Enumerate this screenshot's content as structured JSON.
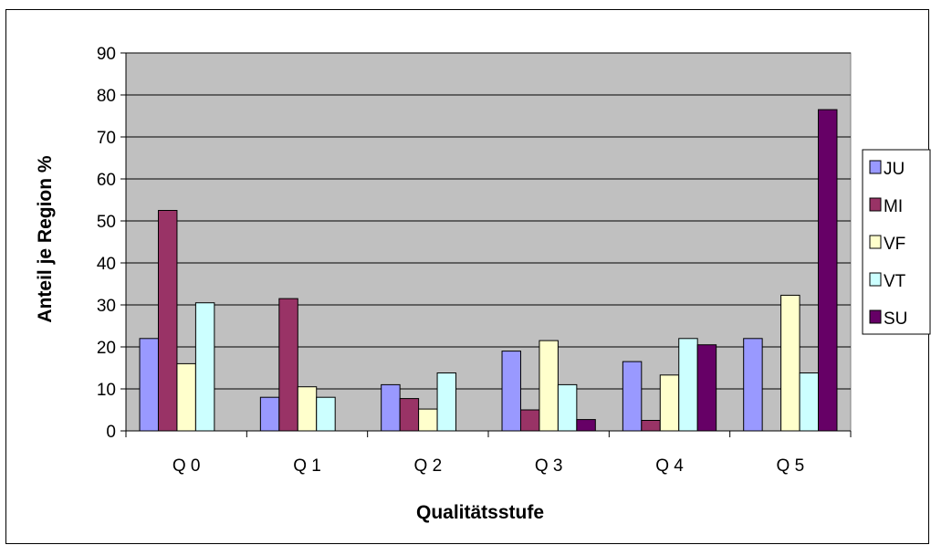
{
  "chart_data": {
    "type": "bar",
    "title": "",
    "xlabel": "Qualitätsstufe",
    "ylabel": "Anteil je Region %",
    "ylim": [
      0,
      90
    ],
    "yticks": [
      0,
      10,
      20,
      30,
      40,
      50,
      60,
      70,
      80,
      90
    ],
    "categories": [
      "Q 0",
      "Q 1",
      "Q 2",
      "Q 3",
      "Q 4",
      "Q 5"
    ],
    "grid": "horizontal",
    "legend_position": "right",
    "plot_background": "#C0C0C0",
    "series": [
      {
        "name": "JU",
        "color": "#9999FF",
        "values": [
          22,
          8,
          11,
          19,
          16.5,
          22
        ]
      },
      {
        "name": "MI",
        "color": "#993366",
        "values": [
          52.5,
          31.5,
          7.7,
          5,
          2.5,
          0
        ]
      },
      {
        "name": "VF",
        "color": "#FFFFCC",
        "values": [
          16,
          10.5,
          5.2,
          21.5,
          13.3,
          32.3
        ]
      },
      {
        "name": "VT",
        "color": "#CCFFFF",
        "values": [
          30.5,
          8,
          13.8,
          11,
          22,
          13.8
        ]
      },
      {
        "name": "SU",
        "color": "#660066",
        "values": [
          0,
          0,
          0,
          2.7,
          20.5,
          76.5
        ]
      }
    ]
  }
}
